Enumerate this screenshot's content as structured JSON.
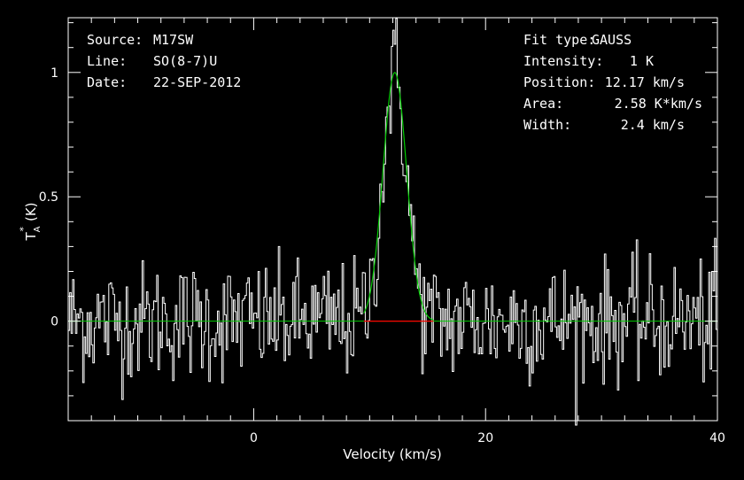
{
  "header_left": {
    "source_label": "Source:",
    "source_value": "M17SW",
    "line_label": "Line:",
    "line_value": "SO(8-7)U",
    "date_label": "Date:",
    "date_value": "22-SEP-2012"
  },
  "fit_info": {
    "fit_type_label": "Fit type:",
    "fit_type_value": "GAUSS",
    "intensity_label": "Intensity:",
    "intensity_value": "1 K",
    "position_label": "Position:",
    "position_value": "12.17 km/s",
    "area_label": "Area:",
    "area_value": "2.58 K*km/s",
    "width_label": "Width:",
    "width_value": "2.4 km/s"
  },
  "chart_data": {
    "type": "line",
    "xlabel": "Velocity (km/s)",
    "ylabel_main": "T",
    "ylabel_sub": "A",
    "ylabel_sup": "*",
    "ylabel_unit": "(K)",
    "xlim": [
      -16,
      40
    ],
    "ylim": [
      -0.4,
      1.22
    ],
    "x_ticks": [
      0,
      20,
      40
    ],
    "x_tick_labels": [
      "0",
      "20",
      "40"
    ],
    "y_ticks": [
      0,
      0.5,
      1
    ],
    "y_tick_labels": [
      "0",
      "0.5",
      "1"
    ],
    "x_minor_step": 2,
    "y_minor_step": 0.1,
    "channel_width": 0.125,
    "noise_rms": 0.12,
    "gaussian_fit": {
      "amplitude": 1.0,
      "center": 12.17,
      "fwhm": 2.4
    },
    "fit_window": [
      9.5,
      15.5
    ],
    "colors": {
      "spectrum": "#ffffff",
      "fit": "#00cc00",
      "fit_window": "#ff0000",
      "axes": "#ffffff",
      "background": "#000000"
    }
  }
}
